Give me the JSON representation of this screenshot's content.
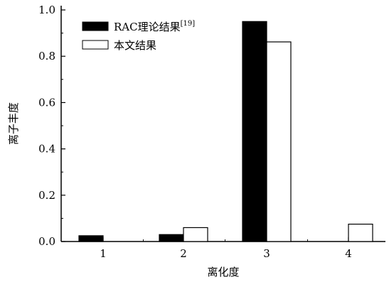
{
  "chart_data": {
    "type": "bar",
    "categories": [
      "1",
      "2",
      "3",
      "4"
    ],
    "series": [
      {
        "name": "RAC理论结果",
        "name_sup": "[19]",
        "fill": "#000000",
        "values": [
          0.025,
          0.03,
          0.95,
          null
        ]
      },
      {
        "name": "本文结果",
        "fill": "#ffffff",
        "values": [
          null,
          0.06,
          0.862,
          0.075
        ]
      }
    ],
    "xlabel": "离化度",
    "ylabel": "离子丰度",
    "ylim": [
      0,
      1.0
    ],
    "yticks": [
      "0.0",
      "0.2",
      "0.4",
      "0.6",
      "0.8",
      "1.0"
    ],
    "grid": false,
    "legend_position": "top-left"
  }
}
